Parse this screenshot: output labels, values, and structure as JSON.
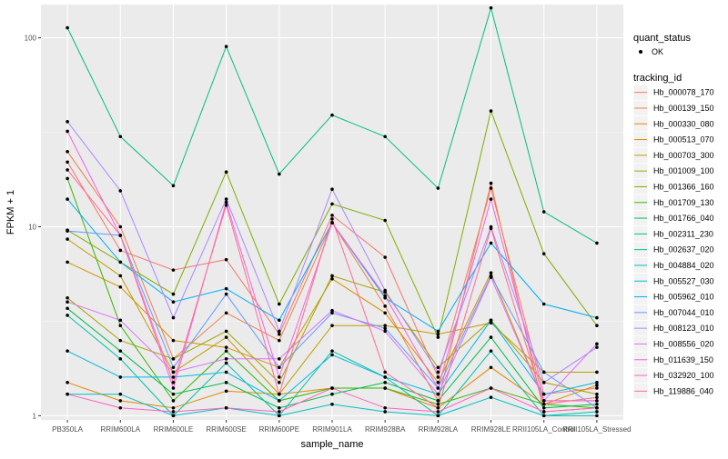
{
  "chart_data": {
    "type": "line",
    "xlabel": "sample_name",
    "ylabel": "FPKM + 1",
    "y_scale": "log10",
    "ylim": [
      0.95,
      150
    ],
    "y_ticks": [
      1,
      10,
      100
    ],
    "y_tick_labels": [
      "1",
      "10",
      "100"
    ],
    "categories": [
      "PB350LA",
      "RRIM600LA",
      "RRIM600LE",
      "RRIM600SE",
      "RRIM600PE",
      "RRIM901LA",
      "RRIM928BA",
      "RRIM928LA",
      "RRIM928LE",
      "RRII105LA_Control",
      "RRII105LA_Stressed"
    ],
    "category_labels": [
      "PB350LA",
      "RRIM600LA",
      "RRIM600LE",
      "RRIM600SE",
      "RRIM600PE",
      "RRIM901LA",
      "RRIM928BA",
      "RRIM928LA",
      "RRIM928LE",
      "RRII105LA_Control",
      "RRII105LA_Stressed"
    ],
    "grid": true,
    "background": "#ebebeb",
    "legend_placement": "right",
    "legend": {
      "shape_title": "quant_status",
      "shape_entry": "OK",
      "color_title": "tracking_id"
    },
    "series": [
      {
        "name": "Hb_000078_170",
        "color": "#F8766D",
        "values": [
          22,
          7.5,
          5.9,
          6.7,
          2.7,
          11.5,
          6.9,
          1.6,
          16,
          1.3,
          1.4
        ]
      },
      {
        "name": "Hb_000139_150",
        "color": "#F07E4E",
        "values": [
          25,
          10,
          2,
          3.5,
          2.5,
          10.5,
          3.8,
          1.2,
          17,
          1.05,
          1.1
        ]
      },
      {
        "name": "Hb_000330_080",
        "color": "#E58700",
        "values": [
          1.5,
          1.2,
          1.1,
          1.35,
          1.3,
          1.4,
          1.4,
          1.1,
          1.8,
          1.15,
          1.45
        ]
      },
      {
        "name": "Hb_000513_070",
        "color": "#D49200",
        "values": [
          6.5,
          4.8,
          2.5,
          2.3,
          1.8,
          5.3,
          3.5,
          1.5,
          5.7,
          1.2,
          1.2
        ]
      },
      {
        "name": "Hb_000703_300",
        "color": "#C09B00",
        "values": [
          8.6,
          5.5,
          1.7,
          2.6,
          1.3,
          3.0,
          3.0,
          2.7,
          3.1,
          1.7,
          1.7
        ]
      },
      {
        "name": "Hb_001009_100",
        "color": "#A3A500",
        "values": [
          4.2,
          2.5,
          2,
          2.8,
          1.5,
          5.5,
          4.5,
          1.8,
          3.2,
          1.5,
          1.3
        ]
      },
      {
        "name": "Hb_001366_160",
        "color": "#7CAE00",
        "values": [
          9.6,
          6.5,
          4.4,
          19.5,
          3.9,
          13.2,
          10.8,
          2.6,
          41,
          7.2,
          3.0
        ]
      },
      {
        "name": "Hb_001709_130",
        "color": "#39B600",
        "values": [
          18,
          3.0,
          1.2,
          2.2,
          1.2,
          1.4,
          1.4,
          1.15,
          1.4,
          1.15,
          1.1
        ]
      },
      {
        "name": "Hb_001766_040",
        "color": "#00BB4E",
        "values": [
          3.7,
          2.2,
          1.3,
          1.5,
          1.1,
          1.3,
          1.5,
          1.2,
          2.6,
          1.1,
          1.15
        ]
      },
      {
        "name": "Hb_002311_230",
        "color": "#00BF7D",
        "values": [
          113,
          30,
          16.5,
          90,
          19,
          39,
          30,
          16,
          144,
          12,
          8.2
        ]
      },
      {
        "name": "Hb_002637_020",
        "color": "#00C1A3",
        "values": [
          3.4,
          2.0,
          1.0,
          1.9,
          1.0,
          2.2,
          1.6,
          1.0,
          2.2,
          1.0,
          1.05
        ]
      },
      {
        "name": "Hb_004884_020",
        "color": "#00BFC4",
        "values": [
          1.3,
          1.3,
          1.0,
          1.1,
          1.0,
          1.15,
          1.05,
          1.0,
          1.25,
          1.0,
          1.0
        ]
      },
      {
        "name": "Hb_005527_030",
        "color": "#00B9E3",
        "values": [
          2.2,
          1.6,
          1.6,
          1.7,
          1.2,
          2.1,
          1.6,
          1.3,
          3.2,
          1.3,
          1.5
        ]
      },
      {
        "name": "Hb_005962_010",
        "color": "#00ADFA",
        "values": [
          14,
          6.5,
          4.0,
          4.7,
          3.2,
          10.5,
          4.2,
          2.8,
          8.2,
          3.9,
          3.3
        ]
      },
      {
        "name": "Hb_007044_010",
        "color": "#619CFF",
        "values": [
          9.5,
          9.0,
          1.8,
          4.4,
          1.8,
          3.5,
          2.9,
          1.4,
          5.5,
          1.7,
          1.1
        ]
      },
      {
        "name": "Hb_008123_010",
        "color": "#AE87FF",
        "values": [
          36,
          15.5,
          3.3,
          14,
          2.8,
          15.8,
          4.6,
          1.7,
          10,
          1.5,
          2.3
        ]
      },
      {
        "name": "Hb_008556_020",
        "color": "#DB72FB",
        "values": [
          4,
          3.2,
          1.7,
          2.0,
          2.0,
          3.6,
          2.8,
          1.3,
          5.4,
          1.2,
          2.4
        ]
      },
      {
        "name": "Hb_011639_150",
        "color": "#F564E3",
        "values": [
          32,
          9,
          1.4,
          13.5,
          1.6,
          10.5,
          4.3,
          1.4,
          14,
          1.2,
          1.2
        ]
      },
      {
        "name": "Hb_032920_100",
        "color": "#FF61C3",
        "values": [
          1.3,
          1.1,
          1.05,
          1.1,
          1.05,
          1.4,
          1.1,
          1.05,
          1.4,
          1.05,
          1.1
        ]
      },
      {
        "name": "Hb_119886_040",
        "color": "#FF6C91",
        "values": [
          20,
          9,
          1.5,
          13,
          1.3,
          11,
          1.7,
          1.1,
          9.8,
          1.15,
          1.25
        ]
      }
    ]
  }
}
